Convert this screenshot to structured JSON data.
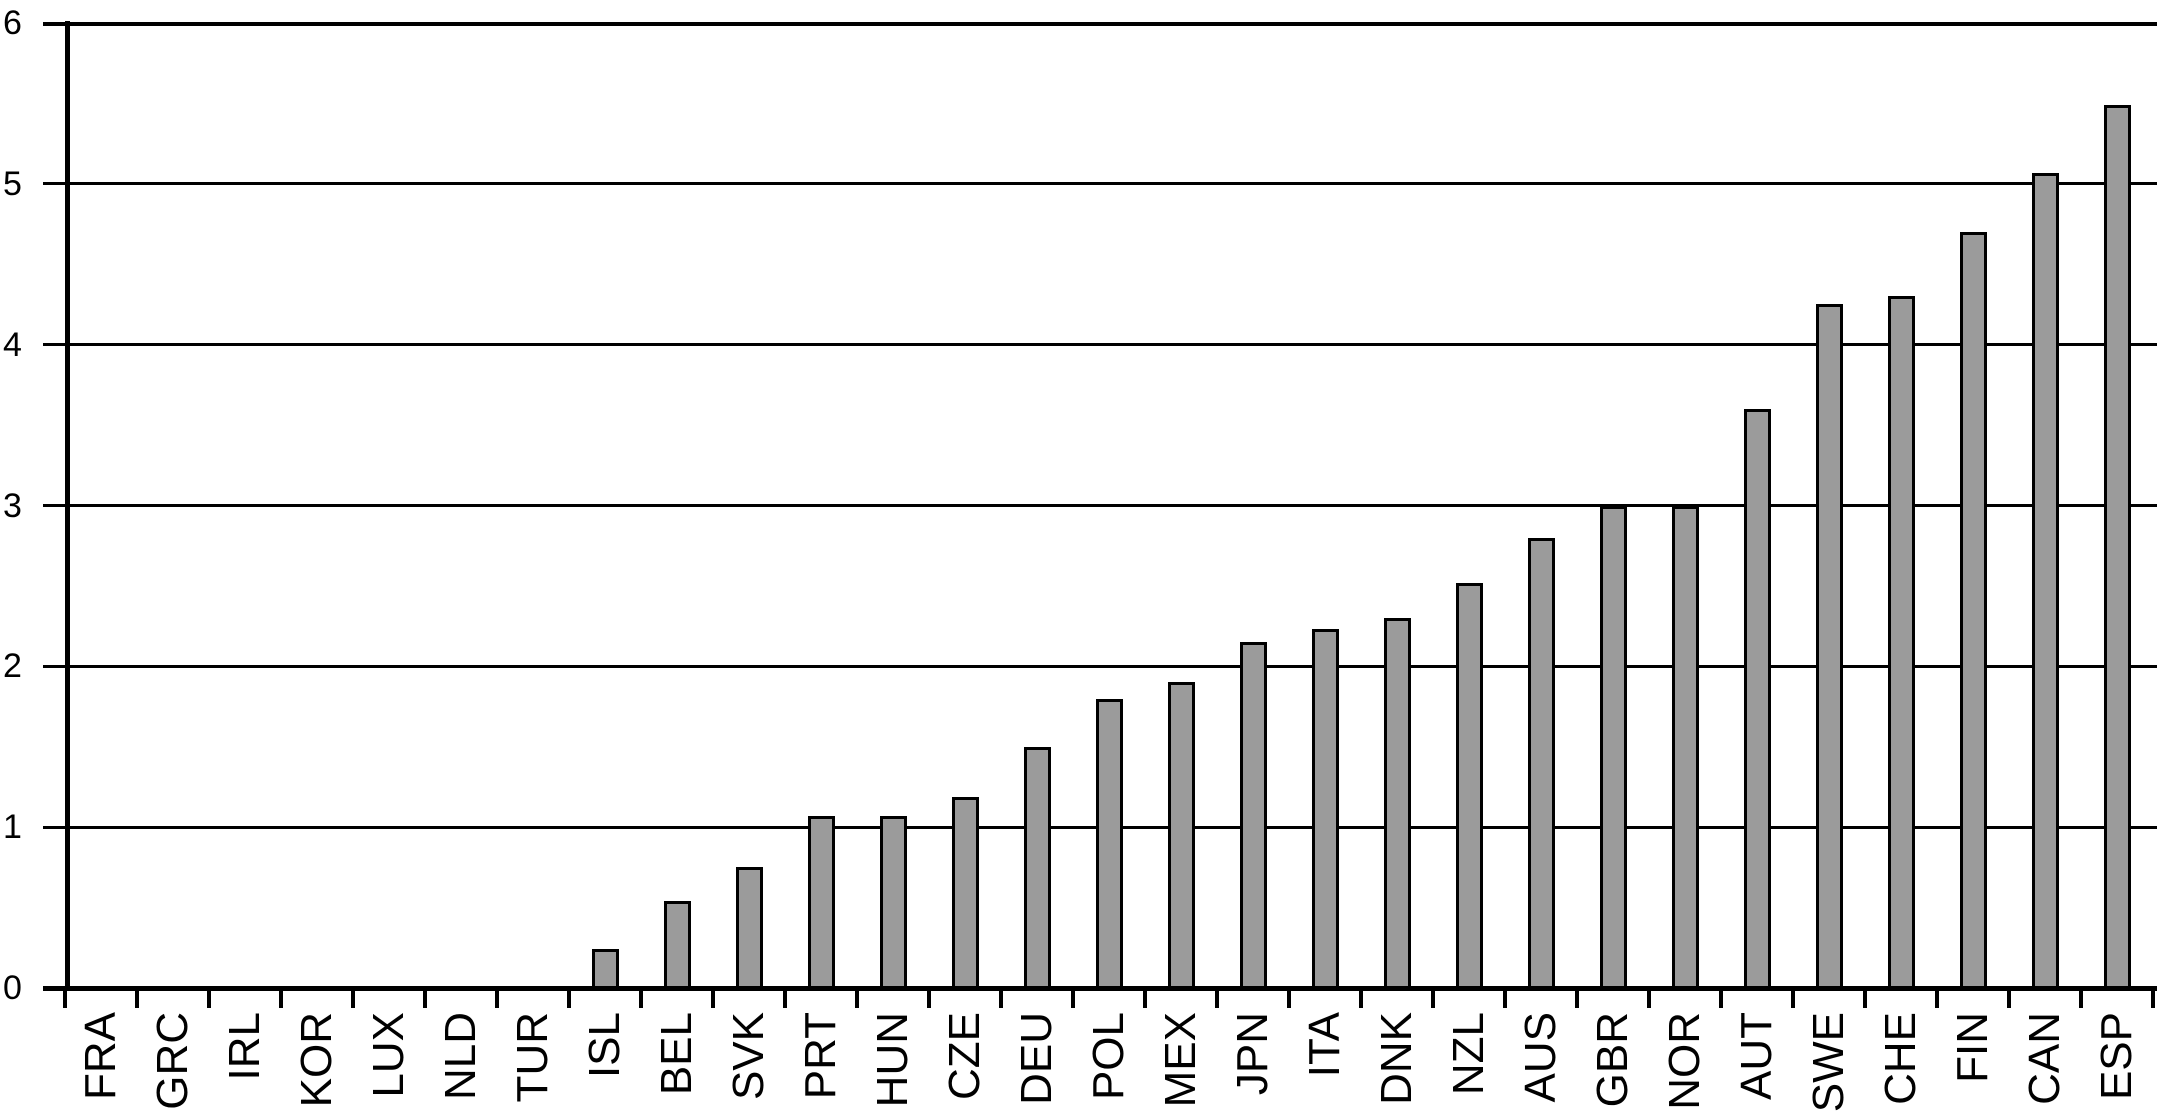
{
  "chart_data": {
    "type": "bar",
    "title": "",
    "xlabel": "",
    "ylabel": "",
    "categories": [
      "FRA",
      "GRC",
      "IRL",
      "KOR",
      "LUX",
      "NLD",
      "TUR",
      "ISL",
      "BEL",
      "SVK",
      "PRT",
      "HUN",
      "CZE",
      "DEU",
      "POL",
      "MEX",
      "JPN",
      "ITA",
      "DNK",
      "NZL",
      "AUS",
      "GBR",
      "NOR",
      "AUT",
      "SWE",
      "CHE",
      "FIN",
      "CAN",
      "ESP"
    ],
    "values": [
      0,
      0,
      0,
      0,
      0,
      0,
      0,
      0.24,
      0.54,
      0.75,
      1.07,
      1.07,
      1.19,
      1.5,
      1.8,
      1.9,
      2.15,
      2.23,
      2.3,
      2.52,
      2.8,
      3.0,
      3.0,
      3.6,
      4.25,
      4.3,
      4.7,
      5.07,
      5.49
    ],
    "ylim": [
      0,
      6
    ],
    "yticks": [
      0,
      1,
      2,
      3,
      4,
      5,
      6
    ],
    "grid": "horizontal",
    "legend": "none",
    "x_label_rotation": "90-degrees-bottom-to-top",
    "bar_fill_color": "#9B9B9B",
    "bar_outline_color": "#000000",
    "axis_color": "#000000",
    "gridline_color": "#000000",
    "background_color": "#ffffff"
  }
}
